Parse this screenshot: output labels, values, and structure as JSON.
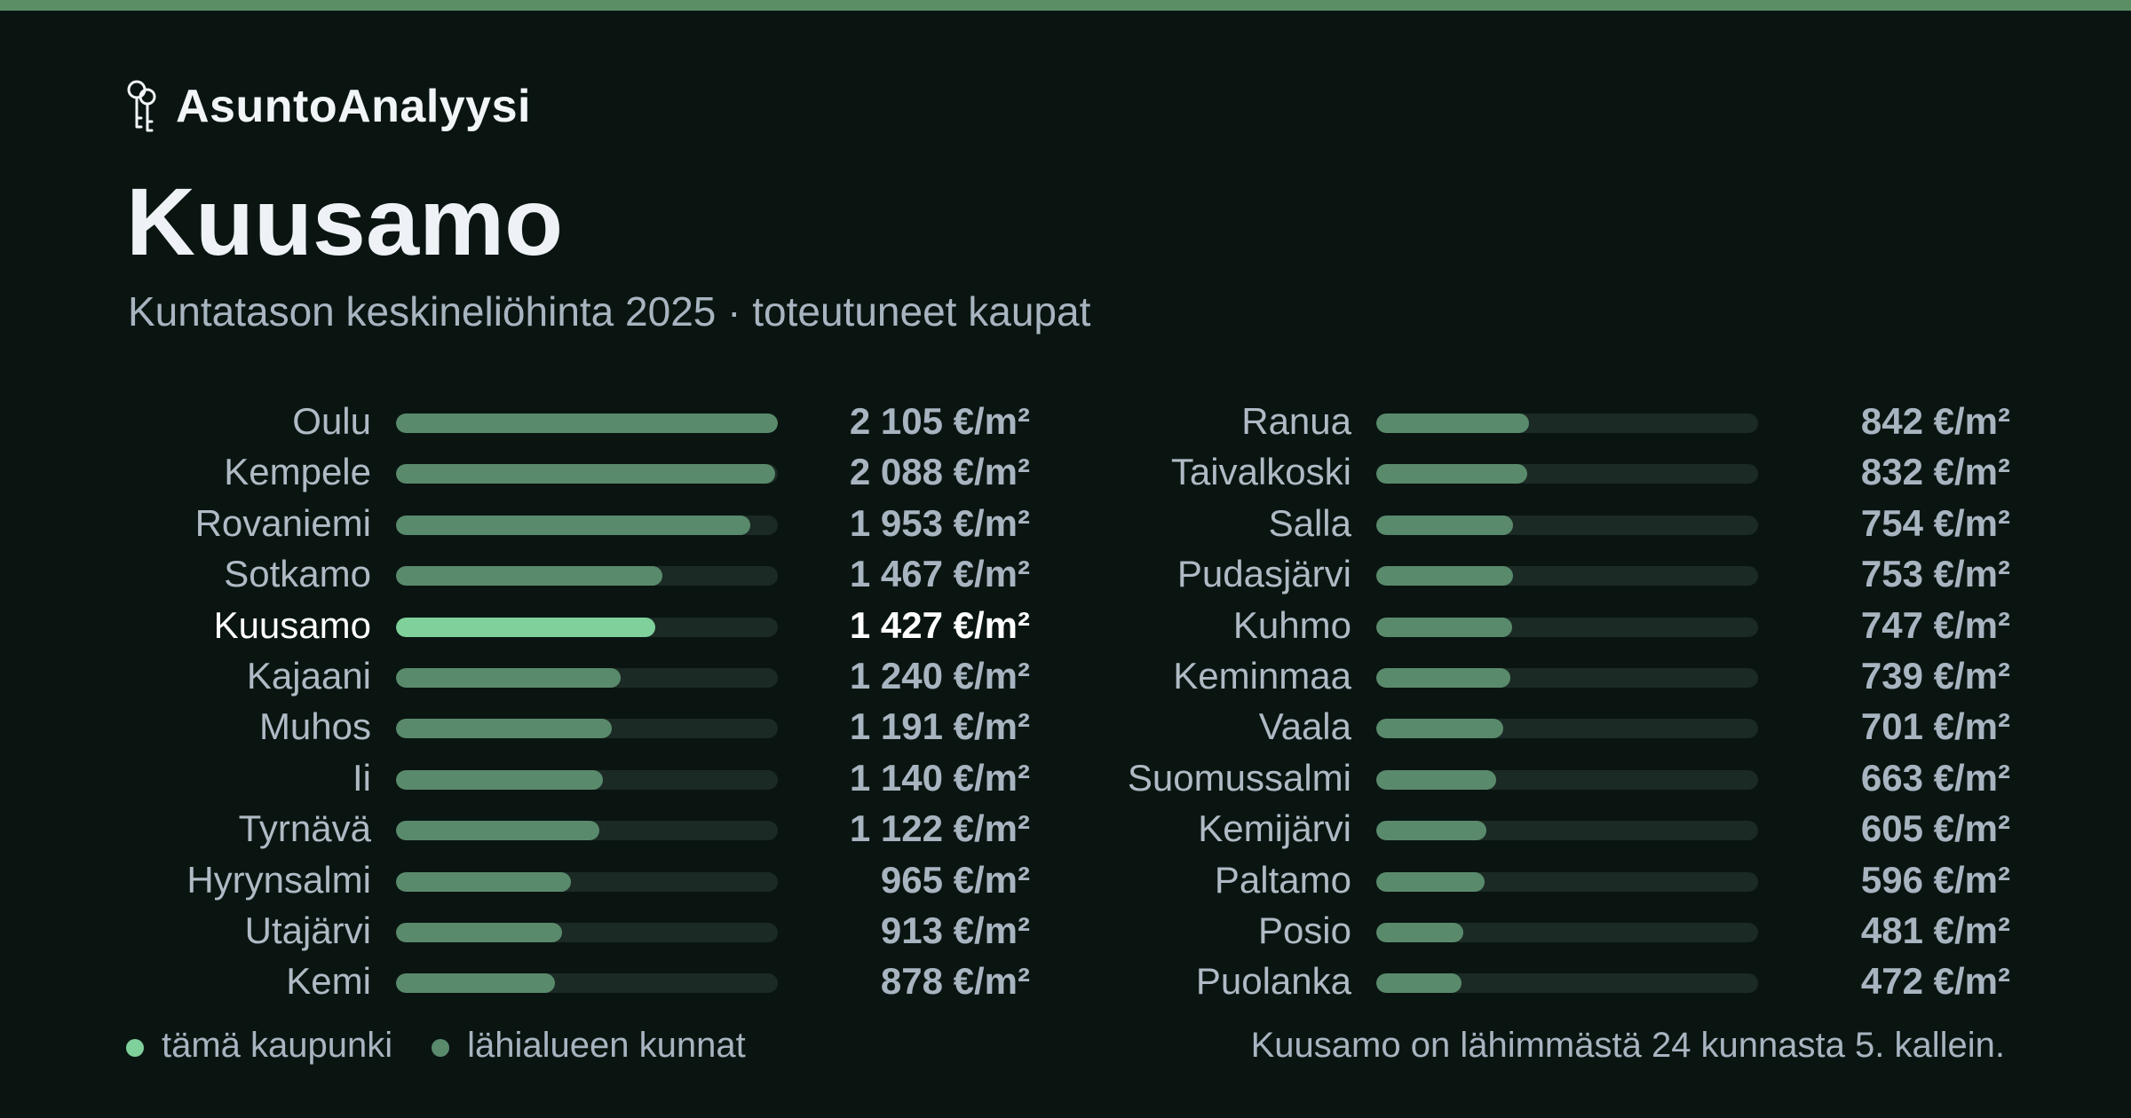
{
  "brand": {
    "name": "AsuntoAnalyysi",
    "icon": "keys-icon"
  },
  "title": "Kuusamo",
  "subtitle": "Kuntatason keskineliöhinta 2025 · toteutuneet kaupat",
  "colors": {
    "background": "#0a1512",
    "accent_top_bar": "#5a8f66",
    "highlight_bar": "#7fd09a",
    "default_bar": "#5a8a6c",
    "track": "#1b2a24",
    "text_muted": "#a8b4c0",
    "text_bright": "#ffffff"
  },
  "chart_data": {
    "type": "bar",
    "orientation": "horizontal",
    "unit": "€/m²",
    "highlight": "Kuusamo",
    "xlim": [
      0,
      2105
    ],
    "categories": [
      "Oulu",
      "Kempele",
      "Rovaniemi",
      "Sotkamo",
      "Kuusamo",
      "Kajaani",
      "Muhos",
      "Ii",
      "Tyrnävä",
      "Hyrynsalmi",
      "Utajärvi",
      "Kemi",
      "Ranua",
      "Taivalkoski",
      "Salla",
      "Pudasjärvi",
      "Kuhmo",
      "Keminmaa",
      "Vaala",
      "Suomussalmi",
      "Kemijärvi",
      "Paltamo",
      "Posio",
      "Puolanka"
    ],
    "values": [
      2105,
      2088,
      1953,
      1467,
      1427,
      1240,
      1191,
      1140,
      1122,
      965,
      913,
      878,
      842,
      832,
      754,
      753,
      747,
      739,
      701,
      663,
      605,
      596,
      481,
      472
    ],
    "value_labels": [
      "2 105 €/m²",
      "2 088 €/m²",
      "1 953 €/m²",
      "1 467 €/m²",
      "1 427 €/m²",
      "1 240 €/m²",
      "1 191 €/m²",
      "1 140 €/m²",
      "1 122 €/m²",
      "965 €/m²",
      "913 €/m²",
      "878 €/m²",
      "842 €/m²",
      "832 €/m²",
      "754 €/m²",
      "753 €/m²",
      "747 €/m²",
      "739 €/m²",
      "701 €/m²",
      "663 €/m²",
      "605 €/m²",
      "596 €/m²",
      "481 €/m²",
      "472 €/m²"
    ]
  },
  "legend": {
    "current_label": "tämä kaupunki",
    "others_label": "lähialueen kunnat"
  },
  "footnote": "Kuusamo on lähimmästä 24 kunnasta 5. kallein."
}
